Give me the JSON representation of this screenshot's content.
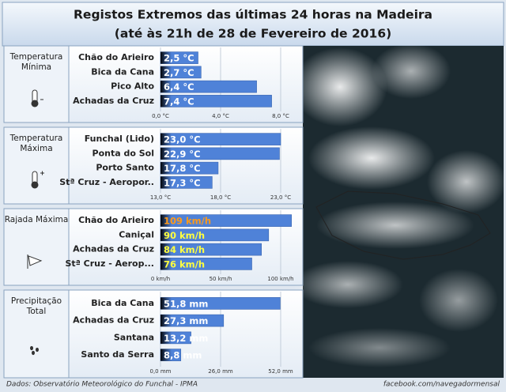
{
  "header": {
    "title_line1": "Registos Extremos das últimas 24 horas na Madeira",
    "title_line2": "(até às 21h de 28 de Fevereiro de 2016)"
  },
  "footer": {
    "source": "Dados:  Observatório Meteorológico do Funchal - IPMA",
    "credit": "facebook.com/navegadormensal"
  },
  "chart_data": [
    {
      "type": "bar",
      "title": "Temperatura Mínima",
      "categories": [
        "Chão do Arieiro",
        "Bica da Cana",
        "Pico Alto",
        "Achadas da Cruz"
      ],
      "values": [
        2.5,
        2.7,
        6.4,
        7.4
      ],
      "value_labels": [
        "2,5 °C",
        "2,7 °C",
        "6,4 °C",
        "7,4 °C"
      ],
      "value_label_colors": [
        "#ffffff",
        "#ffffff",
        "#ffffff",
        "#ffffff"
      ],
      "color": "#4f82d8",
      "xlim": [
        0,
        8
      ],
      "xticks": [
        {
          "value": 0,
          "label": "0,0 °C"
        },
        {
          "value": 4,
          "label": "4,0 °C"
        },
        {
          "value": 8,
          "label": "8,0 °C"
        }
      ],
      "grid": true
    },
    {
      "type": "bar",
      "title": "Temperatura Máxima",
      "categories": [
        "Funchal (Lido)",
        "Ponta do Sol",
        "Porto Santo",
        "Stª Cruz - Aeropor.."
      ],
      "values": [
        23.0,
        22.9,
        17.8,
        17.3
      ],
      "value_labels": [
        "23,0 °C",
        "22,9 °C",
        "17,8 °C",
        "17,3 °C"
      ],
      "value_label_colors": [
        "#ffffff",
        "#ffffff",
        "#ffffff",
        "#ffffff"
      ],
      "color": "#4f82d8",
      "xlim": [
        13,
        23
      ],
      "xticks": [
        {
          "value": 13,
          "label": "13,0 °C"
        },
        {
          "value": 18,
          "label": "18,0 °C"
        },
        {
          "value": 23,
          "label": "23,0 °C"
        }
      ],
      "grid": true
    },
    {
      "type": "bar",
      "title": "Rajada Máxima",
      "categories": [
        "Chão do Arieiro",
        "Caniçal",
        "Achadas da Cruz",
        "Stª Cruz - Aerop..."
      ],
      "values": [
        109,
        90,
        84,
        76
      ],
      "value_labels": [
        "109 km/h",
        "90 km/h",
        "84 km/h",
        "76 km/h"
      ],
      "value_label_colors": [
        "#ff9a1a",
        "#ffff40",
        "#ffff40",
        "#ffff40"
      ],
      "color": "#4f82d8",
      "xlim": [
        0,
        100
      ],
      "xticks": [
        {
          "value": 0,
          "label": "0 km/h"
        },
        {
          "value": 50,
          "label": "50 km/h"
        },
        {
          "value": 100,
          "label": "100 km/h"
        }
      ],
      "grid": true
    },
    {
      "type": "bar",
      "title": "Precipitação Total",
      "categories": [
        "Bica da Cana",
        "Achadas da Cruz",
        "Santana",
        "Santo da Serra"
      ],
      "values": [
        51.8,
        27.3,
        13.2,
        8.8
      ],
      "value_labels": [
        "51,8 mm",
        "27,3 mm",
        "13,2 mm",
        "8,8 mm"
      ],
      "value_label_colors": [
        "#ffffff",
        "#ffffff",
        "#ffffff",
        "#ffffff"
      ],
      "color": "#4f82d8",
      "xlim": [
        0,
        52
      ],
      "xticks": [
        {
          "value": 0,
          "label": "0,0 mm"
        },
        {
          "value": 26,
          "label": "26,0 mm"
        },
        {
          "value": 52,
          "label": "52,0 mm"
        }
      ],
      "grid": true
    }
  ]
}
